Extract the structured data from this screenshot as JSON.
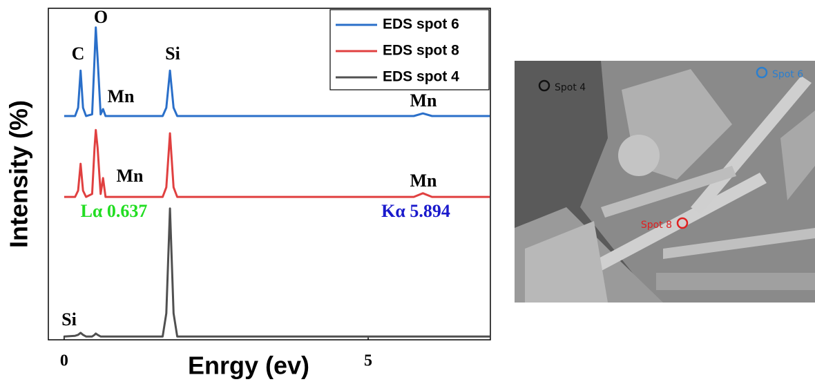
{
  "chart_data": {
    "type": "line",
    "x_label": "Enrgy (ev)",
    "y_label": "Intensity (%)",
    "x": [
      0,
      0.18,
      0.23,
      0.27,
      0.31,
      0.36,
      0.46,
      0.5,
      0.52,
      0.55,
      0.6,
      0.64,
      0.68,
      1.62,
      1.68,
      1.74,
      1.8,
      1.86,
      5.75,
      5.9,
      6.05,
      7.0
    ],
    "series": [
      {
        "name": "EDS spot 6",
        "color": "#2a6fc9",
        "values": [
          67.5,
          67.5,
          70,
          81.2,
          70,
          67.5,
          68,
          85,
          94.2,
          85,
          68,
          69.6,
          67.5,
          67.5,
          70,
          81.2,
          70,
          67.5,
          67.5,
          68.3,
          67.5,
          67.5
        ]
      },
      {
        "name": "EDS spot 8",
        "color": "#e04040",
        "values": [
          43.1,
          43.1,
          45,
          53.1,
          45,
          43.1,
          44,
          58,
          63.3,
          58,
          44,
          48.8,
          43.1,
          43.1,
          46,
          62.3,
          46,
          43.1,
          43.1,
          44.2,
          43.1,
          43.1
        ]
      },
      {
        "name": "EDS spot 4",
        "color": "#505050",
        "values": [
          1.0,
          1.2,
          1.5,
          2.1,
          1.5,
          1.0,
          1.0,
          1.5,
          1.9,
          1.5,
          1.0,
          1.0,
          1.0,
          1.0,
          8,
          39.6,
          8,
          1.0,
          1.0,
          1.0,
          1.0,
          1.0
        ]
      }
    ],
    "xlim": [
      -0.26,
      7.01
    ],
    "ylim": [
      0,
      100
    ],
    "xticks": [
      0,
      5
    ],
    "legend": "upper right",
    "annotations": [
      {
        "text": "C",
        "color": "#000000"
      },
      {
        "text": "O",
        "color": "#000000"
      },
      {
        "text": "Si",
        "color": "#000000"
      },
      {
        "text": "Mn",
        "color": "#000000"
      },
      {
        "text": "Mn",
        "color": "#000000"
      },
      {
        "text": "Mn",
        "color": "#000000"
      },
      {
        "text": "Mn",
        "color": "#000000"
      },
      {
        "text": "Lα 0.637",
        "color": "#22dd22"
      },
      {
        "text": "Kα 5.894",
        "color": "#1a1acc"
      },
      {
        "text": "Si",
        "color": "#000000"
      }
    ]
  },
  "sem_image": {
    "labels": [
      {
        "text": "Spot 4",
        "color": "#111111"
      },
      {
        "text": "Spot 6",
        "color": "#2a7fd0"
      },
      {
        "text": "Spot 8",
        "color": "#e02020"
      }
    ]
  }
}
